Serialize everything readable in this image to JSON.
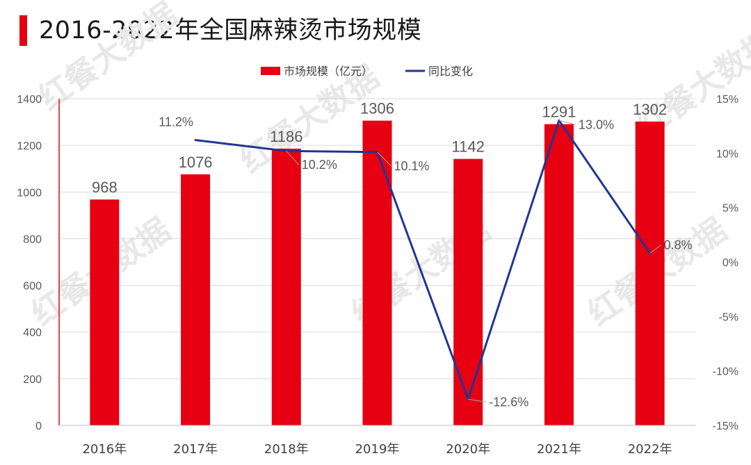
{
  "title": "2016-2022年全国麻辣烫市场规模",
  "watermark": "红餐大数据",
  "colors": {
    "bar": "#e60012",
    "line": "#1f3694",
    "accent": "#e60012"
  },
  "chart_data": {
    "type": "bar",
    "title": "2016-2022年全国麻辣烫市场规模",
    "categories": [
      "2016年",
      "2017年",
      "2018年",
      "2019年",
      "2020年",
      "2021年",
      "2022年"
    ],
    "series": [
      {
        "name": "市场规模（亿元）",
        "type": "bar",
        "axis": "left",
        "values": [
          968,
          1076,
          1186,
          1306,
          1142,
          1291,
          1302
        ],
        "labels": [
          "968",
          "1076",
          "1186",
          "1306",
          "1142",
          "1291",
          "1302"
        ]
      },
      {
        "name": "同比变化",
        "type": "line",
        "axis": "right",
        "values": [
          null,
          11.2,
          10.2,
          10.1,
          -12.6,
          13.0,
          0.8
        ],
        "labels": [
          "",
          "11.2%",
          "10.2%",
          "10.1%",
          "-12.6%",
          "13.0%",
          "0.8%"
        ]
      }
    ],
    "ylim_left": [
      0,
      1400
    ],
    "yticks_left": [
      "0",
      "200",
      "400",
      "600",
      "800",
      "1000",
      "1200",
      "1400"
    ],
    "ylim_right": [
      -15,
      15
    ],
    "yticks_right": [
      "-15%",
      "-10%",
      "-5%",
      "0%",
      "5%",
      "10%",
      "15%"
    ],
    "grid": true,
    "legend_position": "top-center"
  }
}
